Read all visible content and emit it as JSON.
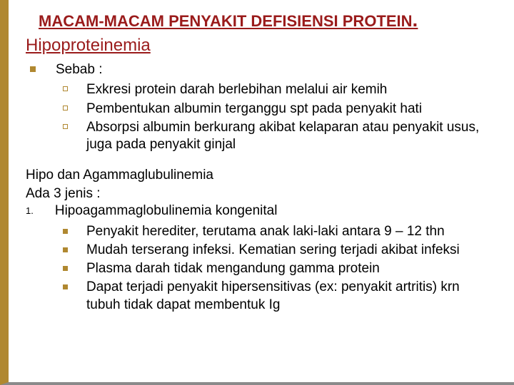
{
  "colors": {
    "border_left": "#b08830",
    "border_bottom": "#8a8a8a",
    "title_color": "#9a1b1b",
    "subtitle1_color": "#9a1b1b",
    "body_color": "#000000",
    "bullet_solid": "#b08830",
    "bullet_outline": "#b08830"
  },
  "fonts": {
    "title_size": "22px",
    "subtitle1_size": "24px",
    "body_size": "19px",
    "small_bullet_body_size": "19px"
  },
  "title": "MACAM-MACAM PENYAKIT DEFISIENSI PROTEIN",
  "title_period": ".",
  "subtitle1": "Hipoproteinemia",
  "section1_label": "Sebab :",
  "section1_items": [
    "Exkresi protein darah berlebihan melalui air kemih",
    "Pembentukan albumin terganggu spt pada penyakit hati",
    "Absorpsi albumin berkurang akibat kelaparan atau penyakit usus, juga pada penyakit ginjal"
  ],
  "plain_line1": "Hipo dan Agammaglubulinemia",
  "plain_line2": "Ada 3 jenis :",
  "num1": "1.",
  "num1_label": "Hipoagammaglobulinemia kongenital",
  "num1_items": [
    "Penyakit herediter, terutama anak laki-laki antara 9 – 12 thn",
    "Mudah terserang infeksi. Kematian sering terjadi akibat infeksi",
    "Plasma darah tidak mengandung gamma protein",
    "Dapat terjadi penyakit hipersensitivas (ex: penyakit artritis) krn tubuh tidak dapat membentuk Ig"
  ]
}
